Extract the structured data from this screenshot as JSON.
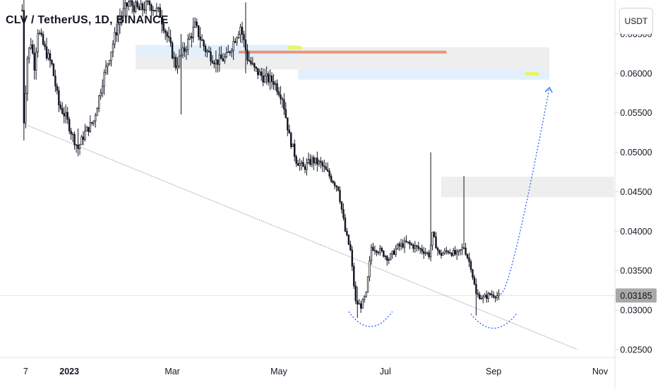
{
  "header": {
    "title": "CLV / TetherUS, 1D, BINANCE",
    "currency_label": "USDT"
  },
  "chart_data": {
    "type": "candlestick",
    "symbol": "CLV / TetherUS",
    "interval": "1D",
    "exchange": "BINANCE",
    "ylim": [
      0.024,
      0.0693
    ],
    "y_ticks": [
      "0.06500",
      "0.06000",
      "0.05500",
      "0.05000",
      "0.04500",
      "0.04000",
      "0.03500",
      "0.03000",
      "0.02500"
    ],
    "x_ticks": [
      {
        "label": "7",
        "date": "2022-12-07"
      },
      {
        "label": "2023",
        "date": "2023-01-01",
        "bold": true
      },
      {
        "label": "Mar",
        "date": "2023-03-01"
      },
      {
        "label": "May",
        "date": "2023-05-01"
      },
      {
        "label": "Jul",
        "date": "2023-07-01"
      },
      {
        "label": "Sep",
        "date": "2023-09-01"
      },
      {
        "label": "Nov",
        "date": "2023-11-01"
      }
    ],
    "current_price": {
      "value": 0.03185,
      "label": "0.03185"
    },
    "price_path": [
      [
        "2022-12-05",
        0.068
      ],
      [
        "2022-12-06",
        0.054
      ],
      [
        "2022-12-08",
        0.062
      ],
      [
        "2022-12-10",
        0.064
      ],
      [
        "2022-12-12",
        0.061
      ],
      [
        "2022-12-14",
        0.0655
      ],
      [
        "2022-12-18",
        0.063
      ],
      [
        "2022-12-22",
        0.061
      ],
      [
        "2022-12-26",
        0.056
      ],
      [
        "2022-12-30",
        0.0545
      ],
      [
        "2023-01-03",
        0.052
      ],
      [
        "2023-01-06",
        0.0505
      ],
      [
        "2023-01-10",
        0.0525
      ],
      [
        "2023-01-15",
        0.054
      ],
      [
        "2023-01-20",
        0.059
      ],
      [
        "2023-01-25",
        0.063
      ],
      [
        "2023-01-30",
        0.067
      ],
      [
        "2023-02-04",
        0.069
      ],
      [
        "2023-02-10",
        0.068
      ],
      [
        "2023-02-16",
        0.0688
      ],
      [
        "2023-02-22",
        0.0675
      ],
      [
        "2023-02-27",
        0.064
      ],
      [
        "2023-03-03",
        0.061
      ],
      [
        "2023-03-08",
        0.063
      ],
      [
        "2023-03-14",
        0.066
      ],
      [
        "2023-03-20",
        0.063
      ],
      [
        "2023-03-26",
        0.0615
      ],
      [
        "2023-04-01",
        0.062
      ],
      [
        "2023-04-05",
        0.064
      ],
      [
        "2023-04-09",
        0.066
      ],
      [
        "2023-04-13",
        0.062
      ],
      [
        "2023-04-17",
        0.0605
      ],
      [
        "2023-04-22",
        0.0595
      ],
      [
        "2023-04-28",
        0.059
      ],
      [
        "2023-05-03",
        0.057
      ],
      [
        "2023-05-07",
        0.052
      ],
      [
        "2023-05-11",
        0.049
      ],
      [
        "2023-05-15",
        0.048
      ],
      [
        "2023-05-20",
        0.049
      ],
      [
        "2023-05-25",
        0.0485
      ],
      [
        "2023-05-30",
        0.047
      ],
      [
        "2023-06-04",
        0.0455
      ],
      [
        "2023-06-08",
        0.04
      ],
      [
        "2023-06-11",
        0.0375
      ],
      [
        "2023-06-14",
        0.031
      ],
      [
        "2023-06-17",
        0.0305
      ],
      [
        "2023-06-20",
        0.032
      ],
      [
        "2023-06-23",
        0.038
      ],
      [
        "2023-06-28",
        0.0375
      ],
      [
        "2023-07-03",
        0.0365
      ],
      [
        "2023-07-08",
        0.038
      ],
      [
        "2023-07-13",
        0.0385
      ],
      [
        "2023-07-18",
        0.038
      ],
      [
        "2023-07-23",
        0.0375
      ],
      [
        "2023-07-26",
        0.037
      ],
      [
        "2023-07-28",
        0.0395
      ],
      [
        "2023-08-01",
        0.037
      ],
      [
        "2023-08-06",
        0.0375
      ],
      [
        "2023-08-11",
        0.037
      ],
      [
        "2023-08-15",
        0.038
      ],
      [
        "2023-08-19",
        0.0355
      ],
      [
        "2023-08-22",
        0.032
      ],
      [
        "2023-08-26",
        0.0315
      ],
      [
        "2023-08-30",
        0.032
      ],
      [
        "2023-09-04",
        0.0318
      ]
    ],
    "spikes": [
      {
        "date": "2022-12-06",
        "high": 0.0695,
        "low": 0.0515
      },
      {
        "date": "2023-01-06",
        "high": 0.053,
        "low": 0.0495
      },
      {
        "date": "2023-03-06",
        "high": 0.065,
        "low": 0.0548
      },
      {
        "date": "2023-04-12",
        "high": 0.069,
        "low": 0.06
      },
      {
        "date": "2023-06-15",
        "high": 0.033,
        "low": 0.029
      },
      {
        "date": "2023-07-27",
        "high": 0.05,
        "low": 0.037
      },
      {
        "date": "2023-08-15",
        "high": 0.047,
        "low": 0.038
      },
      {
        "date": "2023-08-22",
        "high": 0.034,
        "low": 0.0293
      }
    ],
    "trendline": {
      "from": {
        "date": "2022-12-07",
        "price": 0.0535
      },
      "to": {
        "date": "2023-10-19",
        "price": 0.025
      }
    },
    "projection": {
      "from": {
        "date": "2023-09-05",
        "price": 0.032
      },
      "to": {
        "date": "2023-10-03",
        "price": 0.0582
      }
    },
    "supply_zones": [
      {
        "x1": "2023-02-08",
        "x2": "2023-05-12",
        "y1": 0.0605,
        "y2": 0.0636,
        "color": "#eeeeee"
      },
      {
        "x1": "2023-05-12",
        "x2": "2023-10-03",
        "y1": 0.0606,
        "y2": 0.0633,
        "color": "#eeeeee"
      },
      {
        "x1": "2023-02-08",
        "x2": "2023-05-12",
        "y1": 0.0621,
        "y2": 0.0636,
        "color": "#e3f0fc"
      },
      {
        "x1": "2023-05-12",
        "x2": "2023-10-03",
        "y1": 0.0592,
        "y2": 0.0606,
        "color": "#e3f0fc"
      },
      {
        "x1": "2023-08-02",
        "x2": "2023-11-09",
        "y1": 0.0443,
        "y2": 0.0469,
        "color": "#eeeeee"
      }
    ],
    "resistance_line": {
      "x1": "2023-04-08",
      "x2": "2023-08-05",
      "price": 0.0627,
      "color": "#e9967a"
    },
    "markers": [
      {
        "date": "2023-05-10",
        "price": 0.0632,
        "color": "#eaf36a"
      },
      {
        "date": "2023-09-23",
        "price": 0.0599,
        "color": "#eaf36a"
      }
    ],
    "arcs": [
      {
        "x1": "2023-06-10",
        "x2": "2023-07-05",
        "top": 0.0298,
        "bottom": 0.0279
      },
      {
        "x1": "2023-08-19",
        "x2": "2023-09-14",
        "top": 0.0295,
        "bottom": 0.0277
      }
    ],
    "colors": {
      "candle": "#131722",
      "trendline": "#9598a1",
      "projection": "#2962ff",
      "price_line": "#e0e3eb",
      "axis_text": "#131722",
      "price_label_bg": "#a9a9a9"
    }
  }
}
